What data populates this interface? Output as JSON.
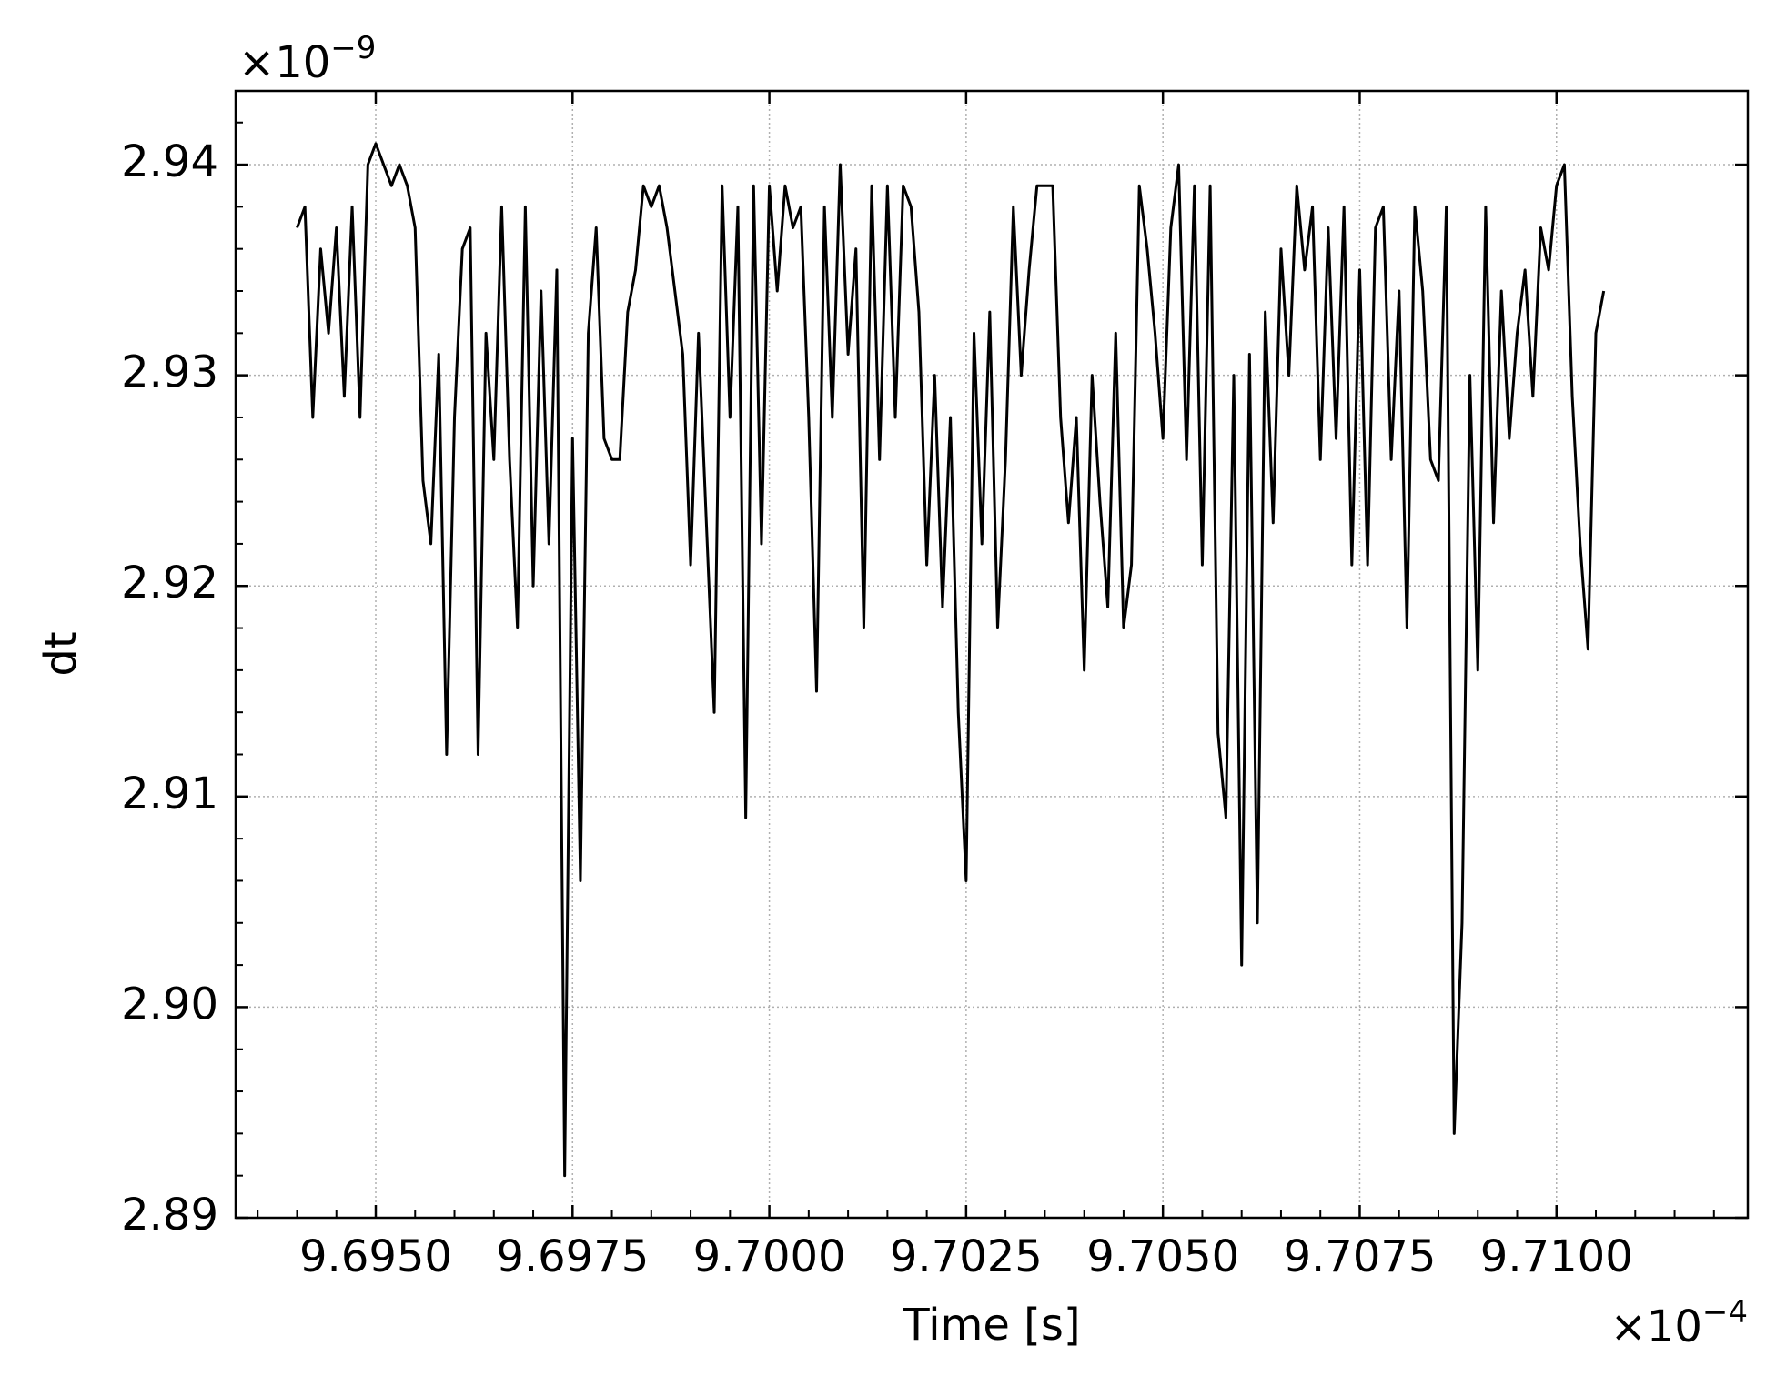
{
  "chart_data": {
    "type": "line",
    "x_label": "Time [s]",
    "y_label": "dt",
    "x_offset": {
      "base": "×10",
      "exponent": "−4"
    },
    "y_offset": {
      "base": "×10",
      "exponent": "−9"
    },
    "xlim": [
      9.69322,
      9.71243
    ],
    "ylim": [
      2.89,
      2.9435
    ],
    "xticks": [
      {
        "value": 9.695,
        "label": "9.6950"
      },
      {
        "value": 9.6975,
        "label": "9.6975"
      },
      {
        "value": 9.7,
        "label": "9.7000"
      },
      {
        "value": 9.7025,
        "label": "9.7025"
      },
      {
        "value": 9.705,
        "label": "9.7050"
      },
      {
        "value": 9.7075,
        "label": "9.7075"
      },
      {
        "value": 9.71,
        "label": "9.7100"
      }
    ],
    "yticks": [
      {
        "value": 2.89,
        "label": "2.89"
      },
      {
        "value": 2.9,
        "label": "2.90"
      },
      2.91,
      2.92,
      2.93,
      2.94
    ],
    "xticks_minor": [
      9.6935,
      9.694,
      9.6945,
      9.6955,
      9.696,
      9.6965,
      9.697,
      9.698,
      9.6985,
      9.699,
      9.6995,
      9.7005,
      9.701,
      9.7015,
      9.702,
      9.703,
      9.7035,
      9.704,
      9.7045,
      9.7055,
      9.706,
      9.7065,
      9.707,
      9.708,
      9.7085,
      9.709,
      9.7095,
      9.7105,
      9.711,
      9.7115,
      9.712
    ],
    "yticks_minor": [
      2.892,
      2.894,
      2.896,
      2.898,
      2.902,
      2.904,
      2.906,
      2.908,
      2.912,
      2.914,
      2.916,
      2.918,
      2.922,
      2.924,
      2.926,
      2.928,
      2.932,
      2.934,
      2.936,
      2.938,
      2.942
    ],
    "grid": true,
    "x": [
      9.694,
      9.6941,
      9.6942,
      9.6943,
      9.6944,
      9.6945,
      9.6946,
      9.6947,
      9.6948,
      9.6949,
      9.695,
      9.6951,
      9.6952,
      9.6953,
      9.6954,
      9.6955,
      9.6956,
      9.6957,
      9.6958,
      9.6959,
      9.696,
      9.6961,
      9.6962,
      9.6963,
      9.6964,
      9.6965,
      9.6966,
      9.6967,
      9.6968,
      9.6969,
      9.697,
      9.6971,
      9.6972,
      9.6973,
      9.6974,
      9.6975,
      9.6976,
      9.6977,
      9.6978,
      9.6979,
      9.698,
      9.6981,
      9.6982,
      9.6983,
      9.6984,
      9.6985,
      9.6986,
      9.6987,
      9.6988,
      9.6989,
      9.699,
      9.6991,
      9.6992,
      9.6993,
      9.6994,
      9.6995,
      9.6996,
      9.6997,
      9.6998,
      9.6999,
      9.7,
      9.7001,
      9.7002,
      9.7003,
      9.7004,
      9.7005,
      9.7006,
      9.7007,
      9.7008,
      9.7009,
      9.701,
      9.7011,
      9.7012,
      9.7013,
      9.7014,
      9.7015,
      9.7016,
      9.7017,
      9.7018,
      9.7019,
      9.702,
      9.7021,
      9.7022,
      9.7023,
      9.7024,
      9.7025,
      9.7026,
      9.7027,
      9.7028,
      9.7029,
      9.703,
      9.7031,
      9.7032,
      9.7033,
      9.7034,
      9.7035,
      9.7036,
      9.7037,
      9.7038,
      9.7039,
      9.704,
      9.7041,
      9.7042,
      9.7043,
      9.7044,
      9.7045,
      9.7046,
      9.7047,
      9.7048,
      9.7049,
      9.705,
      9.7051,
      9.7052,
      9.7053,
      9.7054,
      9.7055,
      9.7056,
      9.7057,
      9.7058,
      9.7059,
      9.706,
      9.7061,
      9.7062,
      9.7063,
      9.7064,
      9.7065,
      9.7066,
      9.7067,
      9.7068,
      9.7069,
      9.707,
      9.7071,
      9.7072,
      9.7073,
      9.7074,
      9.7075,
      9.7076,
      9.7077,
      9.7078,
      9.7079,
      9.708,
      9.7081,
      9.7082,
      9.7083,
      9.7084,
      9.7085,
      9.7086,
      9.7087,
      9.7088,
      9.7089,
      9.709,
      9.7091,
      9.7092,
      9.7093,
      9.7094,
      9.7095,
      9.7096,
      9.7097,
      9.7098,
      9.7099,
      9.71,
      9.7101,
      9.7102,
      9.7103,
      9.7104,
      9.7105,
      9.7106
    ],
    "series": [
      {
        "color": "#000000",
        "values": [
          2.937,
          2.938,
          2.928,
          2.936,
          2.932,
          2.937,
          2.929,
          2.938,
          2.928,
          2.94,
          2.941,
          2.94,
          2.939,
          2.94,
          2.939,
          2.937,
          2.925,
          2.922,
          2.931,
          2.912,
          2.928,
          2.936,
          2.937,
          2.912,
          2.932,
          2.926,
          2.938,
          2.926,
          2.918,
          2.938,
          2.92,
          2.934,
          2.922,
          2.935,
          2.892,
          2.927,
          2.906,
          2.932,
          2.937,
          2.927,
          2.926,
          2.926,
          2.933,
          2.935,
          2.939,
          2.938,
          2.939,
          2.937,
          2.934,
          2.931,
          2.921,
          2.932,
          2.923,
          2.914,
          2.939,
          2.928,
          2.938,
          2.909,
          2.939,
          2.922,
          2.939,
          2.934,
          2.939,
          2.937,
          2.938,
          2.928,
          2.915,
          2.938,
          2.928,
          2.94,
          2.931,
          2.936,
          2.918,
          2.939,
          2.926,
          2.939,
          2.928,
          2.939,
          2.938,
          2.933,
          2.921,
          2.93,
          2.919,
          2.928,
          2.914,
          2.906,
          2.932,
          2.922,
          2.933,
          2.918,
          2.926,
          2.938,
          2.93,
          2.935,
          2.939,
          2.939,
          2.939,
          2.928,
          2.923,
          2.928,
          2.916,
          2.93,
          2.924,
          2.919,
          2.932,
          2.918,
          2.921,
          2.939,
          2.936,
          2.932,
          2.927,
          2.937,
          2.94,
          2.926,
          2.939,
          2.921,
          2.939,
          2.913,
          2.909,
          2.93,
          2.902,
          2.931,
          2.904,
          2.933,
          2.923,
          2.936,
          2.93,
          2.939,
          2.935,
          2.938,
          2.926,
          2.937,
          2.927,
          2.938,
          2.921,
          2.935,
          2.921,
          2.937,
          2.938,
          2.926,
          2.934,
          2.918,
          2.938,
          2.934,
          2.926,
          2.925,
          2.938,
          2.894,
          2.904,
          2.93,
          2.916,
          2.938,
          2.923,
          2.934,
          2.927,
          2.932,
          2.935,
          2.929,
          2.937,
          2.935,
          2.939,
          2.94,
          2.929,
          2.922,
          2.917,
          2.932,
          2.934
        ]
      }
    ]
  }
}
